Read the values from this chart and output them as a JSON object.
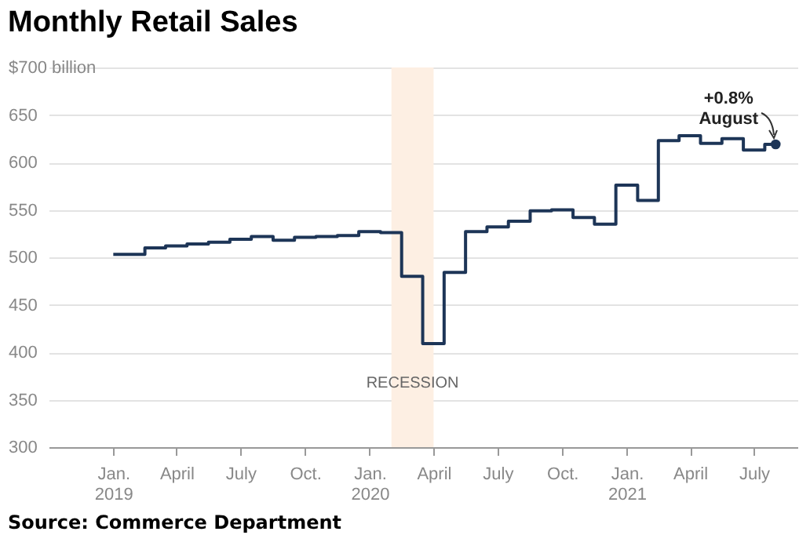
{
  "chart_data": {
    "type": "step",
    "title": "Monthly Retail Sales",
    "x": [
      "2019-01",
      "2019-02",
      "2019-03",
      "2019-04",
      "2019-05",
      "2019-06",
      "2019-07",
      "2019-08",
      "2019-09",
      "2019-10",
      "2019-11",
      "2019-12",
      "2020-01",
      "2020-02",
      "2020-03",
      "2020-04",
      "2020-05",
      "2020-06",
      "2020-07",
      "2020-08",
      "2020-09",
      "2020-10",
      "2020-11",
      "2020-12",
      "2021-01",
      "2021-02",
      "2021-03",
      "2021-04",
      "2021-05",
      "2021-06",
      "2021-07",
      "2021-08"
    ],
    "series": [
      {
        "color": "#1d3557",
        "values": [
          503,
          503,
          510,
          512,
          514,
          516,
          519,
          522,
          518,
          521,
          522,
          523,
          527,
          526,
          480,
          409,
          484,
          527,
          532,
          538,
          549,
          550,
          542,
          535,
          576,
          560,
          623,
          628,
          620,
          625,
          613,
          619
        ]
      },
      {
        "type": "scatter",
        "color": "#1d3557",
        "x": [
          "2021-08"
        ],
        "values": [
          619
        ]
      }
    ],
    "xlim": [
      "2018-10",
      "2021-09"
    ],
    "xticks": [
      {
        "value": "2019-01",
        "label": "Jan.\n2019"
      },
      {
        "value": "2019-04",
        "label": "April"
      },
      {
        "value": "2019-07",
        "label": "July"
      },
      {
        "value": "2019-10",
        "label": "Oct."
      },
      {
        "value": "2020-01",
        "label": "Jan.\n2020"
      },
      {
        "value": "2020-04",
        "label": "April"
      },
      {
        "value": "2020-07",
        "label": "July"
      },
      {
        "value": "2020-10",
        "label": "Oct."
      },
      {
        "value": "2021-01",
        "label": "Jan.\n2021"
      },
      {
        "value": "2021-04",
        "label": "April"
      },
      {
        "value": "2021-07",
        "label": "July"
      }
    ],
    "ylim": [
      300,
      700
    ],
    "yticks": [
      300,
      350,
      400,
      450,
      500,
      550,
      600,
      650,
      {
        "value": 700,
        "label": "$700 billion"
      }
    ],
    "grid": "y",
    "bands": [
      {
        "axis": "x",
        "from": "2020-02",
        "to": "2020-04",
        "label": "RECESSION",
        "color": "#fdefe3"
      }
    ],
    "annotations": [
      {
        "text": "+0.8%\nAugust",
        "x": "2021-08",
        "y": 619
      },
      "Source: Commerce Department"
    ]
  }
}
